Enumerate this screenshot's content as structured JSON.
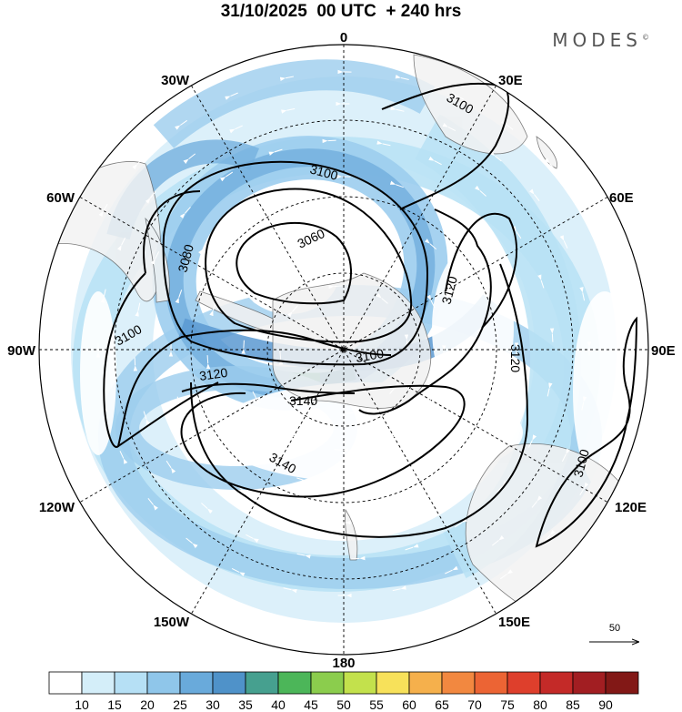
{
  "header": {
    "title": "31/10/2025  00 UTC  + 240 hrs",
    "brand": "MODES",
    "brand_mark": "©"
  },
  "map": {
    "projection": "south-polar-stereographic",
    "longitude_labels": {
      "top": "0",
      "top_right": "30E",
      "right_upper": "60E",
      "right": "90E",
      "right_lower": "120E",
      "bottom_right": "150E",
      "bottom": "180",
      "bottom_left": "150W",
      "left_lower": "120W",
      "left": "90W",
      "left_upper": "60W",
      "top_left": "30W"
    },
    "contour_labels": {
      "c3060": "3060",
      "c3080": "3080",
      "c3100_inner": "3100",
      "c3100_west": "3100",
      "c3100_center": "3100",
      "c3100_ne": "3100",
      "c3100_se": "3100",
      "c3120_east": "3120",
      "c3120_west": "3120",
      "c3120_far_east": "3120",
      "c3140": "3140",
      "c3140_south": "3140"
    },
    "reference_vector": "50",
    "colors": {
      "land": "#f2f2f2",
      "wind_10": "#d8eefa",
      "wind_15": "#b9e2f5",
      "wind_20": "#9ccdee",
      "wind_25": "#74b0de",
      "wind_30": "#5b99d1",
      "wind_35": "#4a8fb0",
      "contour": "#000000"
    }
  },
  "colorbar": {
    "ticks": [
      "10",
      "15",
      "20",
      "25",
      "30",
      "35",
      "40",
      "45",
      "50",
      "55",
      "60",
      "65",
      "70",
      "75",
      "80",
      "85",
      "90"
    ],
    "colors": [
      "#ffffff",
      "#d4eef9",
      "#b6e0f5",
      "#8fc6ea",
      "#69aadb",
      "#4f92c9",
      "#46a08f",
      "#4cb659",
      "#8bcd4d",
      "#c3e14c",
      "#f7e15a",
      "#f5b04c",
      "#f28840",
      "#ec6434",
      "#de3f2c",
      "#c42a28",
      "#a21e22",
      "#821816"
    ]
  }
}
